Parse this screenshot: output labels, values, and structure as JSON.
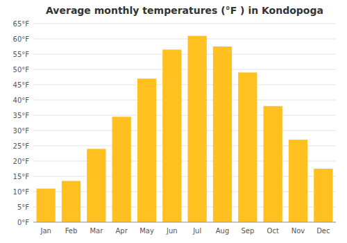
{
  "chart_data": {
    "type": "bar",
    "title": "Average monthly temperatures (°F ) in Kondopoga",
    "categories": [
      "Jan",
      "Feb",
      "Mar",
      "Apr",
      "May",
      "Jun",
      "Jul",
      "Aug",
      "Sep",
      "Oct",
      "Nov",
      "Dec"
    ],
    "values": [
      11,
      13.5,
      24,
      34.5,
      47,
      56.5,
      61,
      57.5,
      49,
      38,
      27,
      17.5
    ],
    "color": "#FFC020",
    "ylim": [
      0,
      65
    ],
    "yticks": [
      {
        "value": 0,
        "label": "0°F"
      },
      {
        "value": 5,
        "label": "5°F"
      },
      {
        "value": 10,
        "label": "10°F"
      },
      {
        "value": 15,
        "label": "15°F"
      },
      {
        "value": 20,
        "label": "20°F"
      },
      {
        "value": 25,
        "label": "25°F"
      },
      {
        "value": 30,
        "label": "30°F"
      },
      {
        "value": 35,
        "label": "35°F"
      },
      {
        "value": 40,
        "label": "40°F"
      },
      {
        "value": 45,
        "label": "45°F"
      },
      {
        "value": 50,
        "label": "50°F"
      },
      {
        "value": 55,
        "label": "55°F"
      },
      {
        "value": 60,
        "label": "60°F"
      },
      {
        "value": 65,
        "label": "65°F"
      }
    ],
    "grid": true
  }
}
